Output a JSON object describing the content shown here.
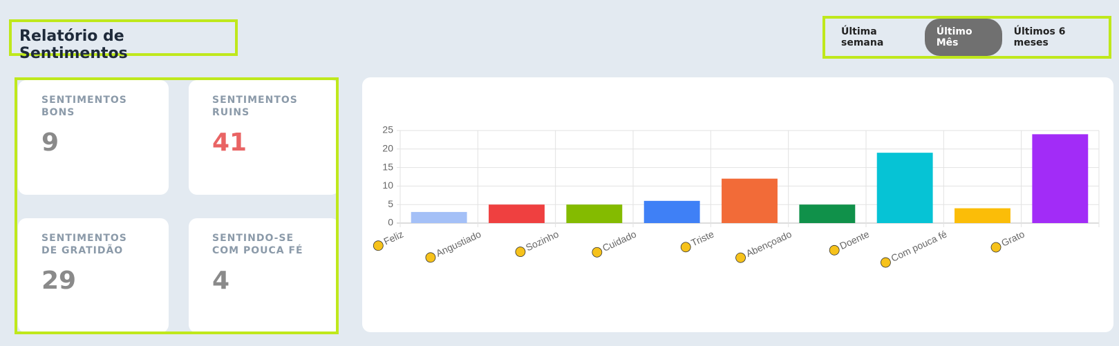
{
  "header": {
    "title": "Relatório de Sentimentos"
  },
  "tabs": [
    "Última semana",
    "Último Mês",
    "Últimos 6 meses"
  ],
  "cards": [
    {
      "label": "SENTIMENTOS BONS",
      "value": 9
    },
    {
      "label": "SENTIMENTOS RUINS",
      "value": 41
    },
    {
      "label": "SENTIMENTOS DE GRATIDÃO",
      "value": 29
    },
    {
      "label": "SENTINDO-SE COM POUCA FÉ",
      "value": 4
    }
  ],
  "chart_data": {
    "type": "bar",
    "categories": [
      "Feliz",
      "Angustiado",
      "Sozinho",
      "Cuidado",
      "Triste",
      "Abençoado",
      "Doente",
      "Com pouca fé",
      "Grato"
    ],
    "values": [
      3,
      5,
      5,
      6,
      12,
      5,
      19,
      4,
      24
    ],
    "colors": [
      "#a4c0f7",
      "#ef4040",
      "#84bb00",
      "#3f80f6",
      "#f26b38",
      "#10914a",
      "#06c3d5",
      "#fbbd08",
      "#a22cf7"
    ],
    "ylim": [
      0,
      25
    ],
    "yticks": [
      0,
      5,
      10,
      15,
      20,
      25
    ],
    "grid": true
  }
}
